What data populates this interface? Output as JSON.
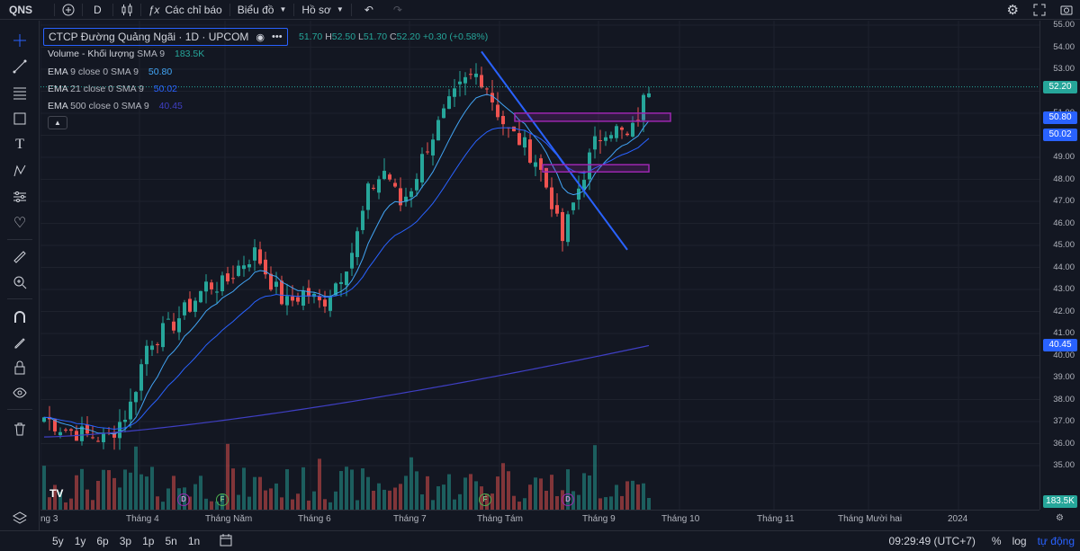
{
  "toolbar": {
    "symbol": "QNS",
    "interval": "D",
    "indicators_label": "Các chỉ báo",
    "chart_label": "Biểu đồ",
    "profile_label": "Hồ sơ"
  },
  "legend": {
    "title": "CTCP Đường Quảng Ngãi · 1D · UPCOM",
    "ohlc": {
      "o_key": "",
      "o": "51.70",
      "h_key": "H",
      "h": "52.50",
      "l_key": "L",
      "l": "51.70",
      "c_key": "C",
      "c": "52.20",
      "change": "+0.30 (+0.58%)"
    },
    "volume": {
      "label": "Volume - Khối lượng",
      "params": "SMA 9",
      "value": "183.5K"
    },
    "ema9": {
      "label": "EMA",
      "params": "9 close 0 SMA 9",
      "value": "50.80"
    },
    "ema21": {
      "label": "EMA",
      "params": "21 close 0 SMA 9",
      "value": "50.02"
    },
    "ema500": {
      "label": "EMA",
      "params": "500 close 0 SMA 9",
      "value": "40.45"
    }
  },
  "price_axis": {
    "ticks": [
      "55.00",
      "54.00",
      "53.00",
      "51.00",
      "49.00",
      "48.00",
      "47.00",
      "46.00",
      "45.00",
      "44.00",
      "43.00",
      "42.00",
      "41.00",
      "40.00",
      "39.00",
      "38.00",
      "37.00",
      "36.00",
      "35.00"
    ],
    "tags": {
      "last": "52.20",
      "ema9": "50.80",
      "ema21": "50.02",
      "ema500": "40.45",
      "volume": "183.5K"
    }
  },
  "time_axis": {
    "ticks": [
      "ng 3",
      "Tháng 4",
      "Tháng Năm",
      "Tháng 6",
      "Tháng 7",
      "Tháng Tám",
      "Tháng 9",
      "Tháng 10",
      "Tháng 11",
      "Tháng Mười hai",
      "2024"
    ]
  },
  "events": [
    "D",
    "F",
    "F",
    "D"
  ],
  "bottombar": {
    "ranges": [
      "5y",
      "1y",
      "6p",
      "3p",
      "1p",
      "5n",
      "1n"
    ],
    "clock": "09:29:49 (UTC+7)",
    "percent": "%",
    "log": "log",
    "auto": "tự động"
  },
  "colors": {
    "up": "#26a69a",
    "down": "#ef5350",
    "ema9": "#42a5f5",
    "ema21": "#2962ff",
    "ema500": "#3f3fc4",
    "trend": "#2962ff",
    "box": "#9c27b0"
  },
  "chart_data": {
    "type": "candlestick",
    "price_range": [
      34.5,
      55.5
    ],
    "last_close": 52.2
  }
}
